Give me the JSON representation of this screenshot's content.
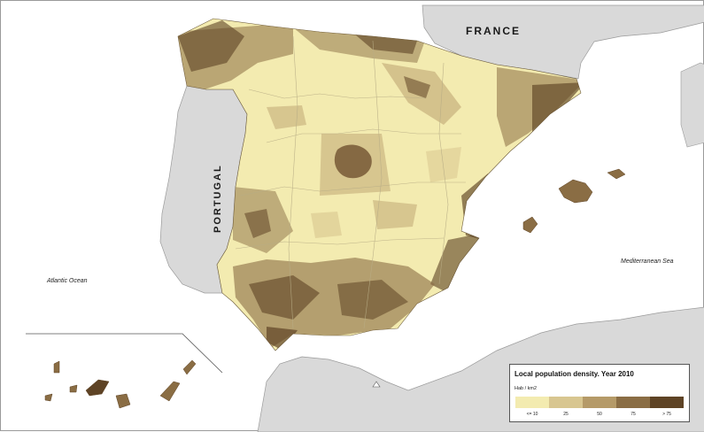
{
  "map": {
    "labels": {
      "france": "FRANCE",
      "portugal": "PORTUGAL",
      "atlantic": "Atlantic Ocean",
      "mediterranean": "Mediterranean Sea"
    },
    "colors": {
      "sea": "#ffffff",
      "neighbor_land": "#d9d9d9",
      "border": "#9a9a9a"
    }
  },
  "legend": {
    "title": "Local population density. Year 2010",
    "unit": "Hab / km2",
    "classes": [
      {
        "label": "<= 10",
        "color": "#f3ebb0"
      },
      {
        "label": "25",
        "color": "#d8c690"
      },
      {
        "label": "50",
        "color": "#b59a68"
      },
      {
        "label": "75",
        "color": "#8a6d44"
      },
      {
        "label": "> 75",
        "color": "#5e4325"
      }
    ]
  }
}
